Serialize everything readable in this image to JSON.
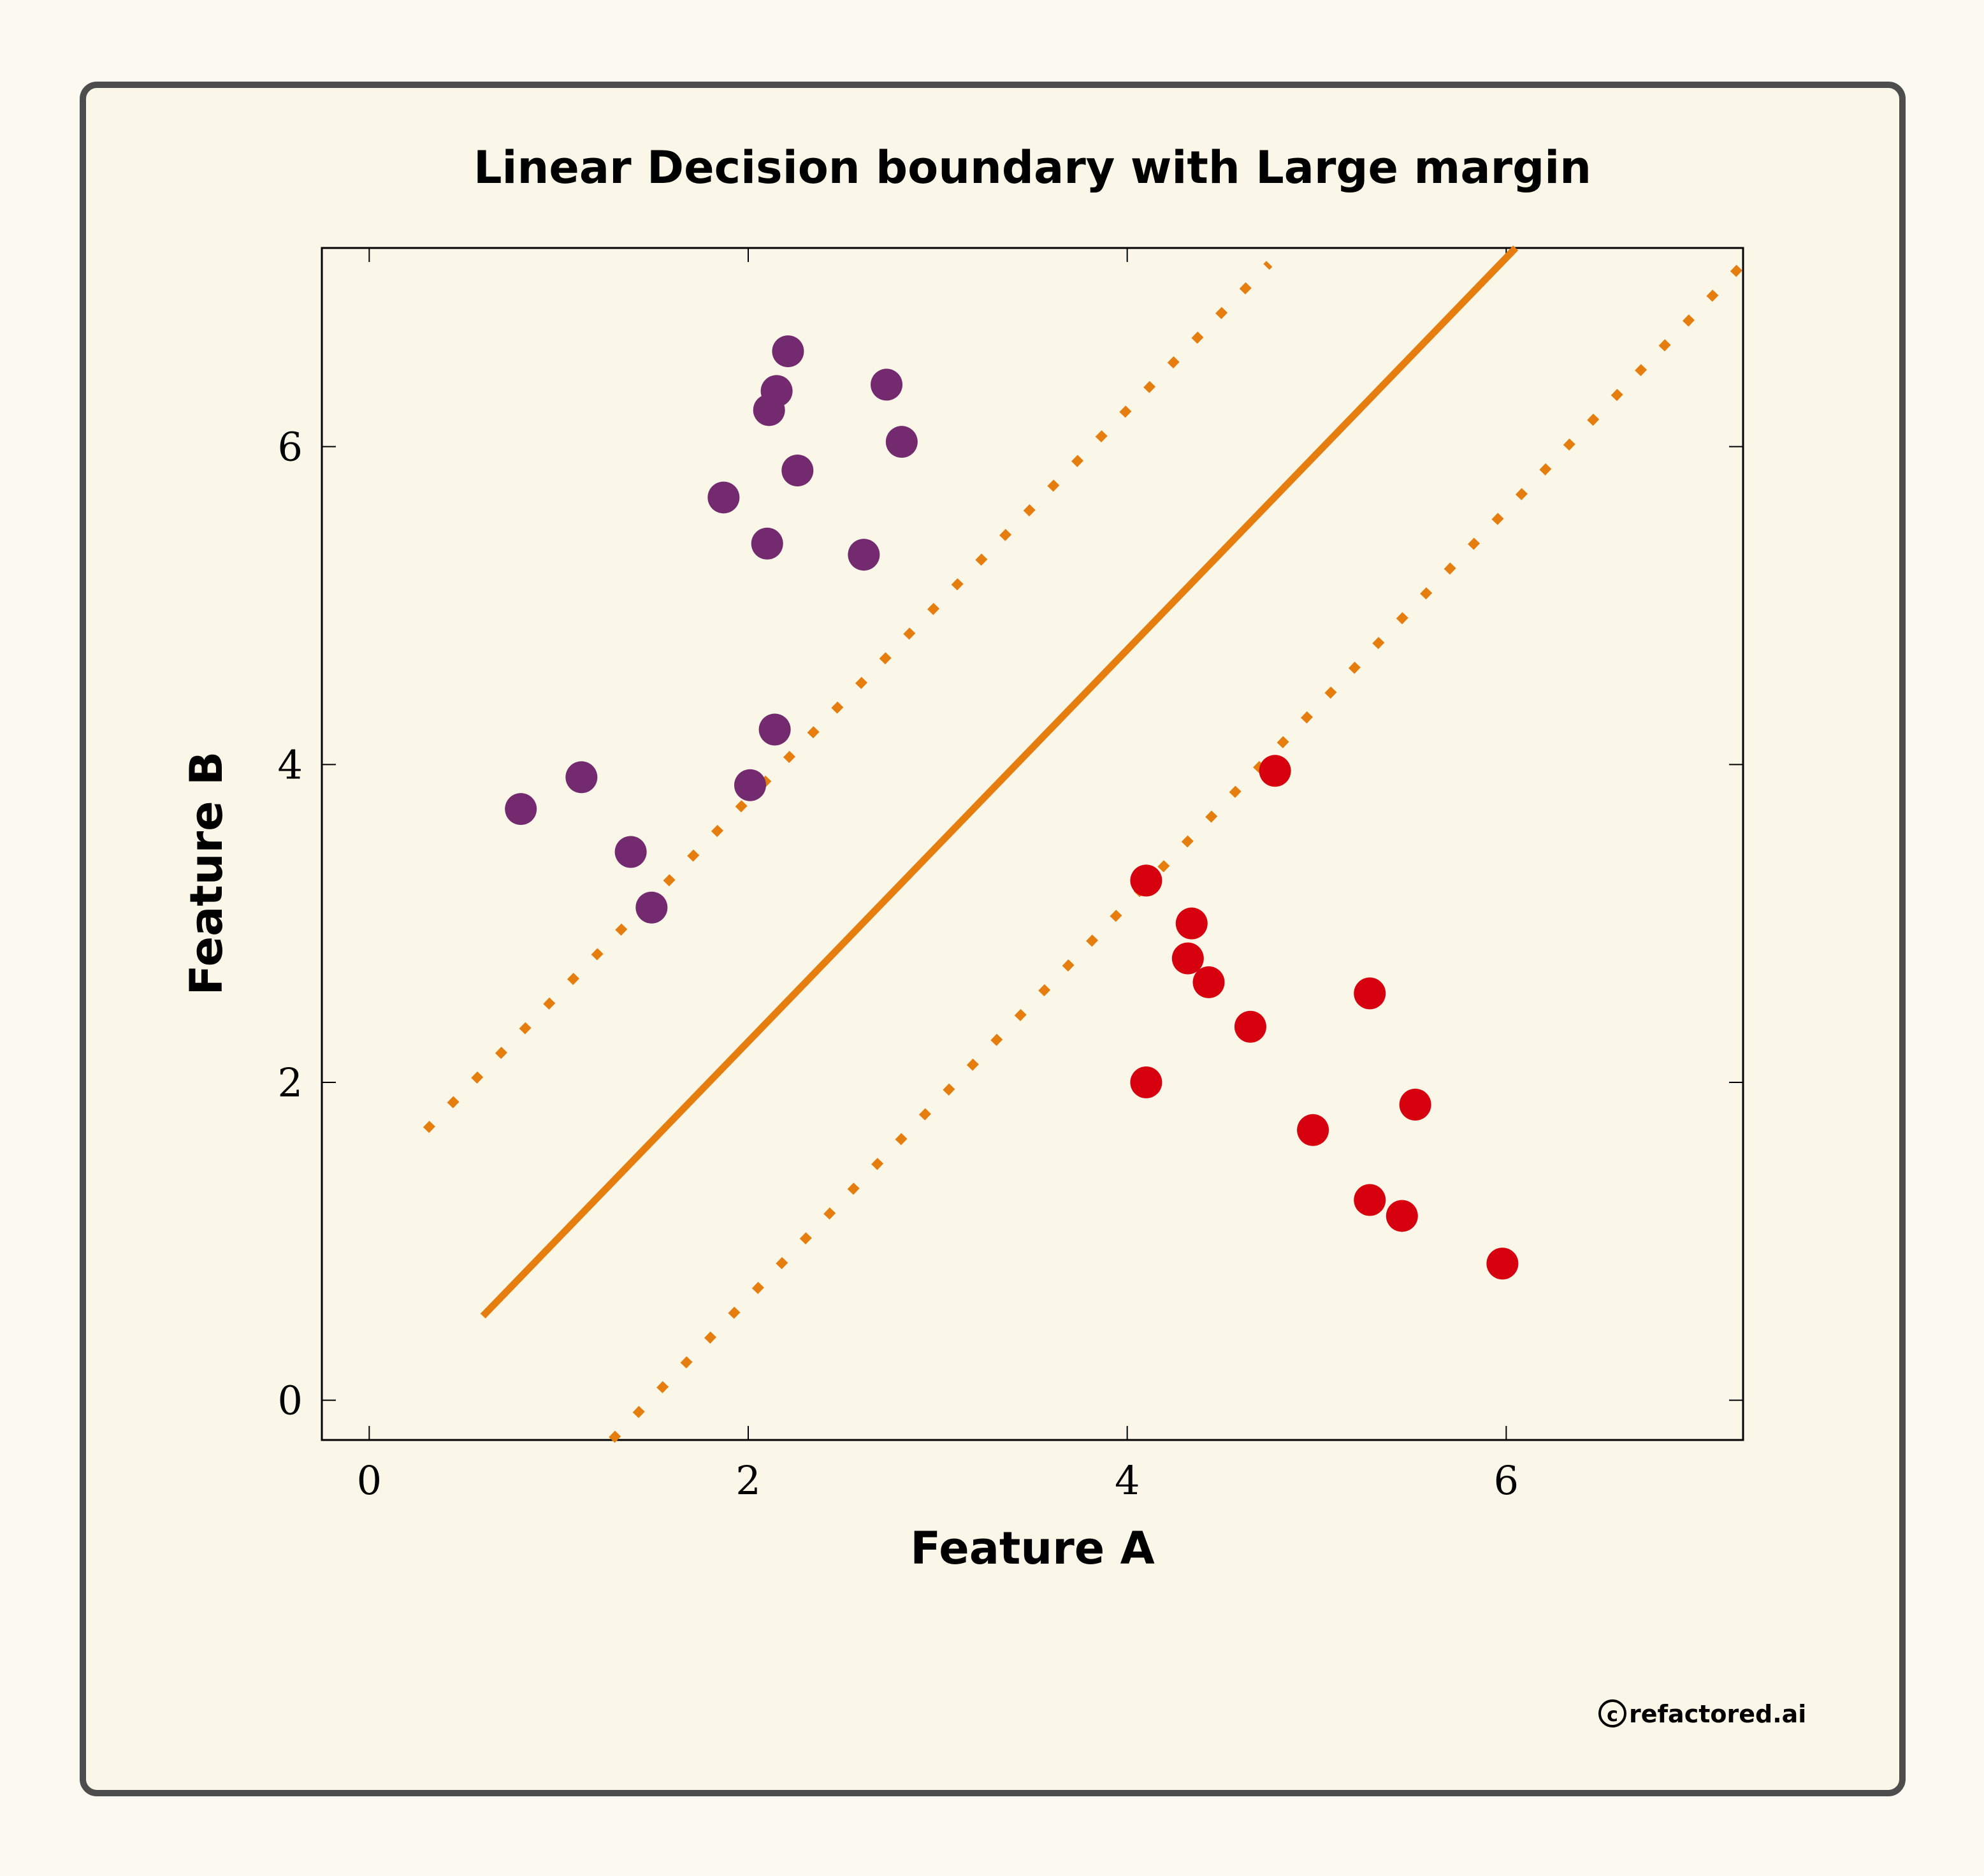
{
  "chart_data": {
    "type": "scatter",
    "title": "Linear Decision boundary with Large margin",
    "xlabel": "Feature A",
    "ylabel": "Feature B",
    "xlim": [
      -0.25,
      7.25
    ],
    "ylim": [
      -0.25,
      7.25
    ],
    "xticks": [
      0,
      2,
      4,
      6
    ],
    "yticks": [
      0,
      2,
      4,
      6
    ],
    "grid": false,
    "series": [
      {
        "color": "#732a6e",
        "points": [
          [
            0.8,
            3.72
          ],
          [
            1.12,
            3.92
          ],
          [
            1.38,
            3.45
          ],
          [
            1.49,
            3.1
          ],
          [
            2.01,
            3.87
          ],
          [
            2.14,
            4.22
          ],
          [
            1.87,
            5.68
          ],
          [
            2.1,
            5.39
          ],
          [
            2.11,
            6.23
          ],
          [
            2.15,
            6.35
          ],
          [
            2.21,
            6.6
          ],
          [
            2.26,
            5.85
          ],
          [
            2.61,
            5.32
          ],
          [
            2.73,
            6.39
          ],
          [
            2.81,
            6.03
          ]
        ]
      },
      {
        "color": "#d7000e",
        "points": [
          [
            4.1,
            3.27
          ],
          [
            4.32,
            2.78
          ],
          [
            4.34,
            3.0
          ],
          [
            4.43,
            2.63
          ],
          [
            4.65,
            2.35
          ],
          [
            4.78,
            3.96
          ],
          [
            4.1,
            2.0
          ],
          [
            4.98,
            1.7
          ],
          [
            5.28,
            2.56
          ],
          [
            5.28,
            1.26
          ],
          [
            5.45,
            1.16
          ],
          [
            5.52,
            1.86
          ],
          [
            5.98,
            0.86
          ]
        ]
      }
    ],
    "lines": [
      {
        "style": "solid",
        "color": "#e67e0f",
        "x": [
          0.6,
          6.05
        ],
        "y": [
          0.53,
          7.25
        ]
      },
      {
        "style": "dotted",
        "color": "#e67e0f",
        "x": [
          0.3,
          4.75
        ],
        "y": [
          1.7,
          7.15
        ]
      },
      {
        "style": "dotted",
        "color": "#e67e0f",
        "x": [
          1.28,
          7.25
        ],
        "y": [
          -0.25,
          7.15
        ]
      }
    ]
  },
  "credit": {
    "symbol": "c",
    "text": "refactored.ai"
  },
  "colors": {
    "page_bg": "#fcfaf0",
    "card_bg": "#faf7e8",
    "card_border": "#4d4d4d",
    "accent": "#e67e0f"
  }
}
